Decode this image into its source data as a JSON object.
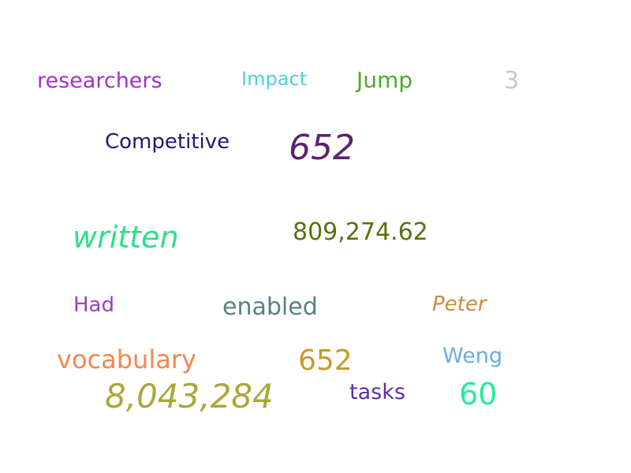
{
  "words": [
    {
      "text": "researchers",
      "color": "#a232c8"
    },
    {
      "text": "Impact",
      "color": "#4fd0dc"
    },
    {
      "text": "Jump",
      "color": "#4caa2c"
    },
    {
      "text": "3",
      "color": "#c8c8c8"
    },
    {
      "text": "Competitive",
      "color": "#1e1a6e"
    },
    {
      "text": "652",
      "color": "#5a2470"
    },
    {
      "text": "written",
      "color": "#2ee08a"
    },
    {
      "text": "809,274.62",
      "color": "#5a7010"
    },
    {
      "text": "Had",
      "color": "#9a40b8"
    },
    {
      "text": "enabled",
      "color": "#5a8088"
    },
    {
      "text": "Peter",
      "color": "#c88c3c"
    },
    {
      "text": "vocabulary",
      "color": "#f08850"
    },
    {
      "text": "652",
      "color": "#c89a28"
    },
    {
      "text": "Weng",
      "color": "#6aaee0"
    },
    {
      "text": "8,043,284",
      "color": "#aaa83a"
    },
    {
      "text": "tasks",
      "color": "#5a30a8"
    },
    {
      "text": "60",
      "color": "#22ee9a"
    }
  ]
}
